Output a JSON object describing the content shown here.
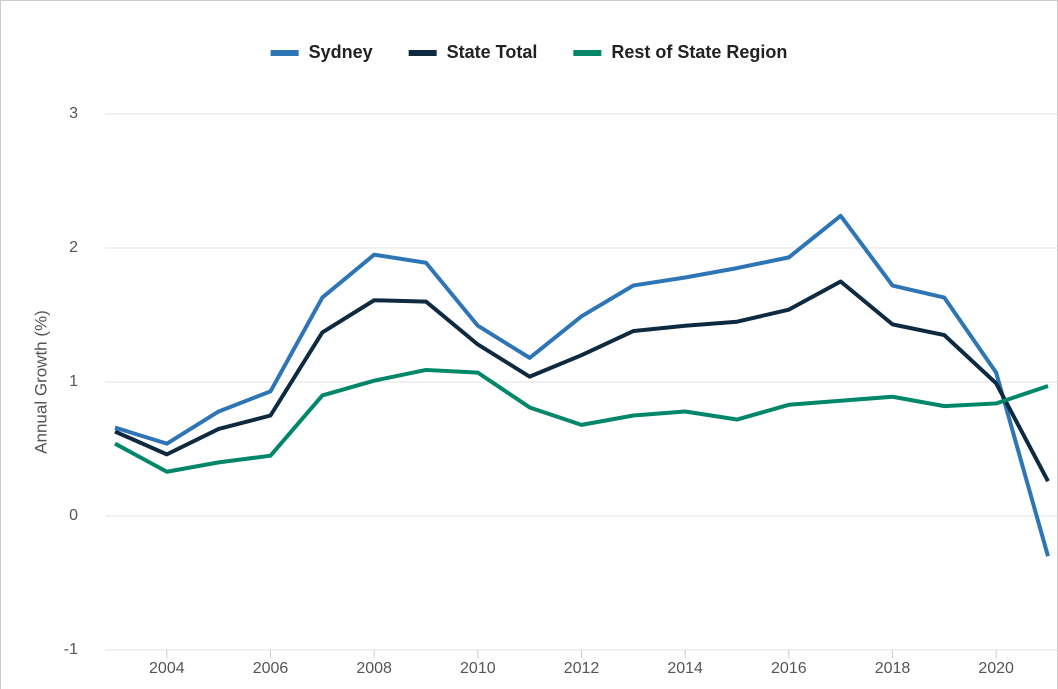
{
  "chart_data": {
    "type": "line",
    "y_label": "Annual Growth (%)",
    "x": [
      2003,
      2004,
      2005,
      2006,
      2007,
      2008,
      2009,
      2010,
      2011,
      2012,
      2013,
      2014,
      2015,
      2016,
      2017,
      2018,
      2019,
      2020,
      2021
    ],
    "series": [
      {
        "name": "Sydney",
        "color": "#2e75b6",
        "values": [
          0.66,
          0.54,
          0.78,
          0.93,
          1.63,
          1.95,
          1.89,
          1.42,
          1.18,
          1.49,
          1.72,
          1.78,
          1.85,
          1.93,
          2.24,
          1.72,
          1.63,
          1.07,
          -0.3
        ]
      },
      {
        "name": "State Total",
        "color": "#0d2a40",
        "values": [
          0.63,
          0.46,
          0.65,
          0.75,
          1.37,
          1.61,
          1.6,
          1.28,
          1.04,
          1.2,
          1.38,
          1.42,
          1.45,
          1.54,
          1.75,
          1.43,
          1.35,
          0.99,
          0.26
        ]
      },
      {
        "name": "Rest of State Region",
        "color": "#00876a",
        "values": [
          0.54,
          0.33,
          0.4,
          0.45,
          0.9,
          1.01,
          1.09,
          1.07,
          0.81,
          0.68,
          0.75,
          0.78,
          0.72,
          0.83,
          0.86,
          0.89,
          0.82,
          0.84,
          0.97
        ]
      }
    ],
    "xlim": [
      2003,
      2021
    ],
    "xticks": [
      2004,
      2006,
      2008,
      2010,
      2012,
      2014,
      2016,
      2018,
      2020
    ],
    "ylim": [
      -1,
      3
    ],
    "yticks": [
      -1,
      0,
      1,
      2,
      3
    ],
    "grid": true,
    "legend": "top"
  }
}
